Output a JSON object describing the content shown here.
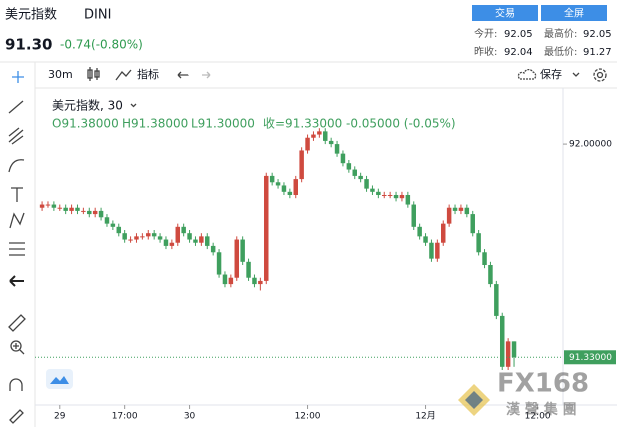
{
  "header": {
    "title": "美元指数",
    "symbol": "DINI",
    "price": "91.30",
    "change": "-0.74(-0.80%)",
    "buttons": [
      "交易",
      "全屏"
    ],
    "stats": [
      [
        "今开:",
        "92.05"
      ],
      [
        "最高价:",
        "92.05"
      ],
      [
        "昨收:",
        "92.04"
      ],
      [
        "最低价:",
        "91.27"
      ]
    ]
  },
  "toolbar": {
    "interval": "30m",
    "indicators": "指标",
    "save": "保存"
  },
  "chart_data": {
    "type": "candlestick",
    "title": "美元指数, 30",
    "legend": [
      "O91.38000",
      "H91.38000",
      "L91.30000",
      "收=91.33000",
      "-0.05000 (-0.05%)"
    ],
    "up_color": "#cf4a3f",
    "down_color": "#3f9f5e",
    "ohlc": [
      [
        91.8,
        91.82,
        91.79,
        91.81
      ],
      [
        91.81,
        91.82,
        91.8,
        91.81
      ],
      [
        91.81,
        91.82,
        91.79,
        91.8
      ],
      [
        91.8,
        91.81,
        91.79,
        91.8
      ],
      [
        91.8,
        91.81,
        91.78,
        91.79
      ],
      [
        91.79,
        91.81,
        91.78,
        91.8
      ],
      [
        91.8,
        91.81,
        91.78,
        91.79
      ],
      [
        91.79,
        91.8,
        91.78,
        91.79
      ],
      [
        91.79,
        91.8,
        91.77,
        91.78
      ],
      [
        91.78,
        91.8,
        91.77,
        91.79
      ],
      [
        91.79,
        91.8,
        91.76,
        91.77
      ],
      [
        91.77,
        91.78,
        91.74,
        91.75
      ],
      [
        91.75,
        91.76,
        91.73,
        91.74
      ],
      [
        91.74,
        91.75,
        91.71,
        91.72
      ],
      [
        91.72,
        91.73,
        91.69,
        91.7
      ],
      [
        91.7,
        91.71,
        91.69,
        91.7
      ],
      [
        91.7,
        91.72,
        91.69,
        91.71
      ],
      [
        91.71,
        91.72,
        91.7,
        91.71
      ],
      [
        91.71,
        91.73,
        91.7,
        91.72
      ],
      [
        91.72,
        91.73,
        91.7,
        91.71
      ],
      [
        91.71,
        91.72,
        91.69,
        91.7
      ],
      [
        91.7,
        91.71,
        91.67,
        91.68
      ],
      [
        91.68,
        91.7,
        91.67,
        91.69
      ],
      [
        91.69,
        91.75,
        91.68,
        91.74
      ],
      [
        91.74,
        91.75,
        91.71,
        91.72
      ],
      [
        91.72,
        91.73,
        91.69,
        91.7
      ],
      [
        91.7,
        91.71,
        91.68,
        91.69
      ],
      [
        91.69,
        91.72,
        91.68,
        91.71
      ],
      [
        91.71,
        91.72,
        91.67,
        91.68
      ],
      [
        91.68,
        91.69,
        91.65,
        91.66
      ],
      [
        91.66,
        91.67,
        91.58,
        91.59
      ],
      [
        91.59,
        91.6,
        91.55,
        91.56
      ],
      [
        91.56,
        91.59,
        91.55,
        91.58
      ],
      [
        91.58,
        91.71,
        91.57,
        91.7
      ],
      [
        91.7,
        91.71,
        91.62,
        91.63
      ],
      [
        91.63,
        91.64,
        91.57,
        91.58
      ],
      [
        91.58,
        91.59,
        91.55,
        91.56
      ],
      [
        91.56,
        91.58,
        91.54,
        91.57
      ],
      [
        91.57,
        91.91,
        91.56,
        91.9
      ],
      [
        91.9,
        91.91,
        91.87,
        91.88
      ],
      [
        91.88,
        91.89,
        91.86,
        91.87
      ],
      [
        91.87,
        91.88,
        91.84,
        91.85
      ],
      [
        91.85,
        91.86,
        91.83,
        91.84
      ],
      [
        91.84,
        91.9,
        91.83,
        91.89
      ],
      [
        91.89,
        91.99,
        91.88,
        91.98
      ],
      [
        91.98,
        92.03,
        91.97,
        92.02
      ],
      [
        92.02,
        92.04,
        92.01,
        92.03
      ],
      [
        92.03,
        92.05,
        92.02,
        92.04
      ],
      [
        92.04,
        92.05,
        92.0,
        92.01
      ],
      [
        92.01,
        92.02,
        91.99,
        92.0
      ],
      [
        92.0,
        92.01,
        91.96,
        91.97
      ],
      [
        91.97,
        91.98,
        91.93,
        91.94
      ],
      [
        91.94,
        91.95,
        91.91,
        91.92
      ],
      [
        91.92,
        91.93,
        91.89,
        91.9
      ],
      [
        91.9,
        91.91,
        91.88,
        91.89
      ],
      [
        91.89,
        91.9,
        91.85,
        91.86
      ],
      [
        91.86,
        91.87,
        91.84,
        91.85
      ],
      [
        91.85,
        91.86,
        91.83,
        91.84
      ],
      [
        91.84,
        91.85,
        91.83,
        91.84
      ],
      [
        91.84,
        91.85,
        91.83,
        91.84
      ],
      [
        91.84,
        91.85,
        91.82,
        91.83
      ],
      [
        91.83,
        91.85,
        91.82,
        91.84
      ],
      [
        91.84,
        91.85,
        91.8,
        91.81
      ],
      [
        91.81,
        91.82,
        91.73,
        91.74
      ],
      [
        91.74,
        91.75,
        91.7,
        91.71
      ],
      [
        91.71,
        91.72,
        91.68,
        91.69
      ],
      [
        91.69,
        91.7,
        91.63,
        91.64
      ],
      [
        91.64,
        91.7,
        91.63,
        91.69
      ],
      [
        91.69,
        91.76,
        91.68,
        91.75
      ],
      [
        91.75,
        91.81,
        91.74,
        91.8
      ],
      [
        91.8,
        91.81,
        91.78,
        91.79
      ],
      [
        91.79,
        91.81,
        91.78,
        91.8
      ],
      [
        91.8,
        91.81,
        91.77,
        91.78
      ],
      [
        91.78,
        91.79,
        91.71,
        91.72
      ],
      [
        91.72,
        91.73,
        91.65,
        91.66
      ],
      [
        91.66,
        91.67,
        91.61,
        91.62
      ],
      [
        91.62,
        91.63,
        91.55,
        91.56
      ],
      [
        91.56,
        91.57,
        91.45,
        91.46
      ],
      [
        91.46,
        91.47,
        91.29,
        91.3
      ],
      [
        91.3,
        91.39,
        91.29,
        91.38
      ],
      [
        91.38,
        91.38,
        91.3,
        91.33
      ]
    ],
    "ylim": [
      91.18,
      92.17
    ],
    "yticks": [
      {
        "value": 92,
        "label": "92.00000"
      }
    ],
    "last_price": {
      "value": 91.33,
      "label": "91.33000"
    },
    "xlim": [
      -1.2,
      88.3
    ],
    "xticks": [
      {
        "value": 3,
        "label": "29"
      },
      {
        "value": 14,
        "label": "17:00"
      },
      {
        "value": 25,
        "label": "30"
      },
      {
        "value": 45,
        "label": "12:00"
      },
      {
        "value": 65,
        "label": "12月"
      },
      {
        "value": 84,
        "label": "12:00"
      }
    ],
    "watermark": [
      "FX168",
      "漢 聲 集 團"
    ]
  }
}
